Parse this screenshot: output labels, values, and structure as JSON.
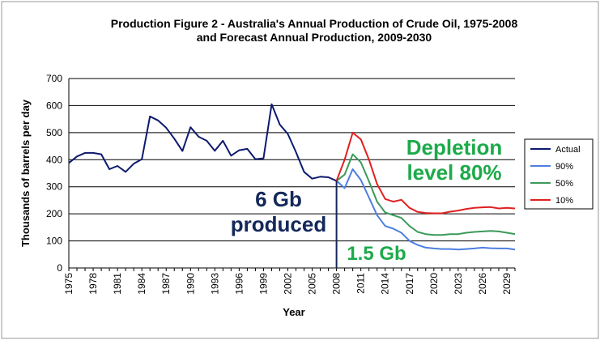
{
  "chart_data": {
    "type": "line",
    "title_line1": "Production Figure 2 - Australia's Annual Production of Crude Oil, 1975-2008",
    "title_line2": "and Forecast Annual Production, 2009-2030",
    "xlabel": "Year",
    "ylabel": "Thousands of barrels per day",
    "xlim": [
      1975,
      2030
    ],
    "ylim": [
      0,
      700
    ],
    "yticks": [
      0,
      100,
      200,
      300,
      400,
      500,
      600,
      700
    ],
    "xticks": [
      1975,
      1978,
      1981,
      1984,
      1987,
      1990,
      1993,
      1996,
      1999,
      2002,
      2005,
      2008,
      2011,
      2014,
      2017,
      2020,
      2023,
      2026,
      2029
    ],
    "grid": "horizontal",
    "legend_position": "right",
    "series": [
      {
        "name": "Actual",
        "color": "#0d1a6e",
        "x": [
          1975,
          1976,
          1977,
          1978,
          1979,
          1980,
          1981,
          1982,
          1983,
          1984,
          1985,
          1986,
          1987,
          1988,
          1989,
          1990,
          1991,
          1992,
          1993,
          1994,
          1995,
          1996,
          1997,
          1998,
          1999,
          2000,
          2001,
          2002,
          2003,
          2004,
          2005,
          2006,
          2007,
          2008
        ],
        "values": [
          388,
          412,
          425,
          425,
          420,
          365,
          377,
          355,
          385,
          402,
          560,
          545,
          518,
          478,
          432,
          520,
          485,
          470,
          433,
          470,
          415,
          435,
          440,
          402,
          405,
          605,
          530,
          495,
          428,
          355,
          330,
          337,
          335,
          322
        ]
      },
      {
        "name": "90%",
        "color": "#4d7fe0",
        "x": [
          2008,
          2009,
          2010,
          2011,
          2012,
          2013,
          2014,
          2015,
          2016,
          2017,
          2018,
          2019,
          2020,
          2021,
          2022,
          2023,
          2024,
          2025,
          2026,
          2027,
          2028,
          2029,
          2030
        ],
        "values": [
          322,
          295,
          365,
          325,
          260,
          195,
          155,
          145,
          130,
          100,
          85,
          75,
          72,
          70,
          70,
          68,
          70,
          72,
          75,
          73,
          72,
          72,
          68
        ]
      },
      {
        "name": "50%",
        "color": "#3a9a5a",
        "x": [
          2008,
          2009,
          2010,
          2011,
          2012,
          2013,
          2014,
          2015,
          2016,
          2017,
          2018,
          2019,
          2020,
          2021,
          2022,
          2023,
          2024,
          2025,
          2026,
          2027,
          2028,
          2029,
          2030
        ],
        "values": [
          322,
          345,
          420,
          390,
          320,
          245,
          205,
          195,
          185,
          155,
          133,
          125,
          122,
          122,
          125,
          125,
          130,
          133,
          135,
          137,
          135,
          130,
          125
        ]
      },
      {
        "name": "10%",
        "color": "#e02020",
        "x": [
          2008,
          2009,
          2010,
          2011,
          2012,
          2013,
          2014,
          2015,
          2016,
          2017,
          2018,
          2019,
          2020,
          2021,
          2022,
          2023,
          2024,
          2025,
          2026,
          2027,
          2028,
          2029,
          2030
        ],
        "values": [
          322,
          400,
          500,
          475,
          400,
          310,
          255,
          245,
          252,
          222,
          207,
          203,
          202,
          202,
          208,
          212,
          218,
          222,
          224,
          225,
          220,
          222,
          220
        ]
      }
    ],
    "annotations": [
      {
        "text": "Depletion",
        "color": "#1daa4a"
      },
      {
        "text": "level 80%",
        "color": "#1daa4a"
      },
      {
        "text": "6 Gb",
        "color": "#14285a"
      },
      {
        "text": "produced",
        "color": "#14285a"
      },
      {
        "text": "1.5 Gb",
        "color": "#1daa4a"
      }
    ],
    "vline_x": 2008
  }
}
